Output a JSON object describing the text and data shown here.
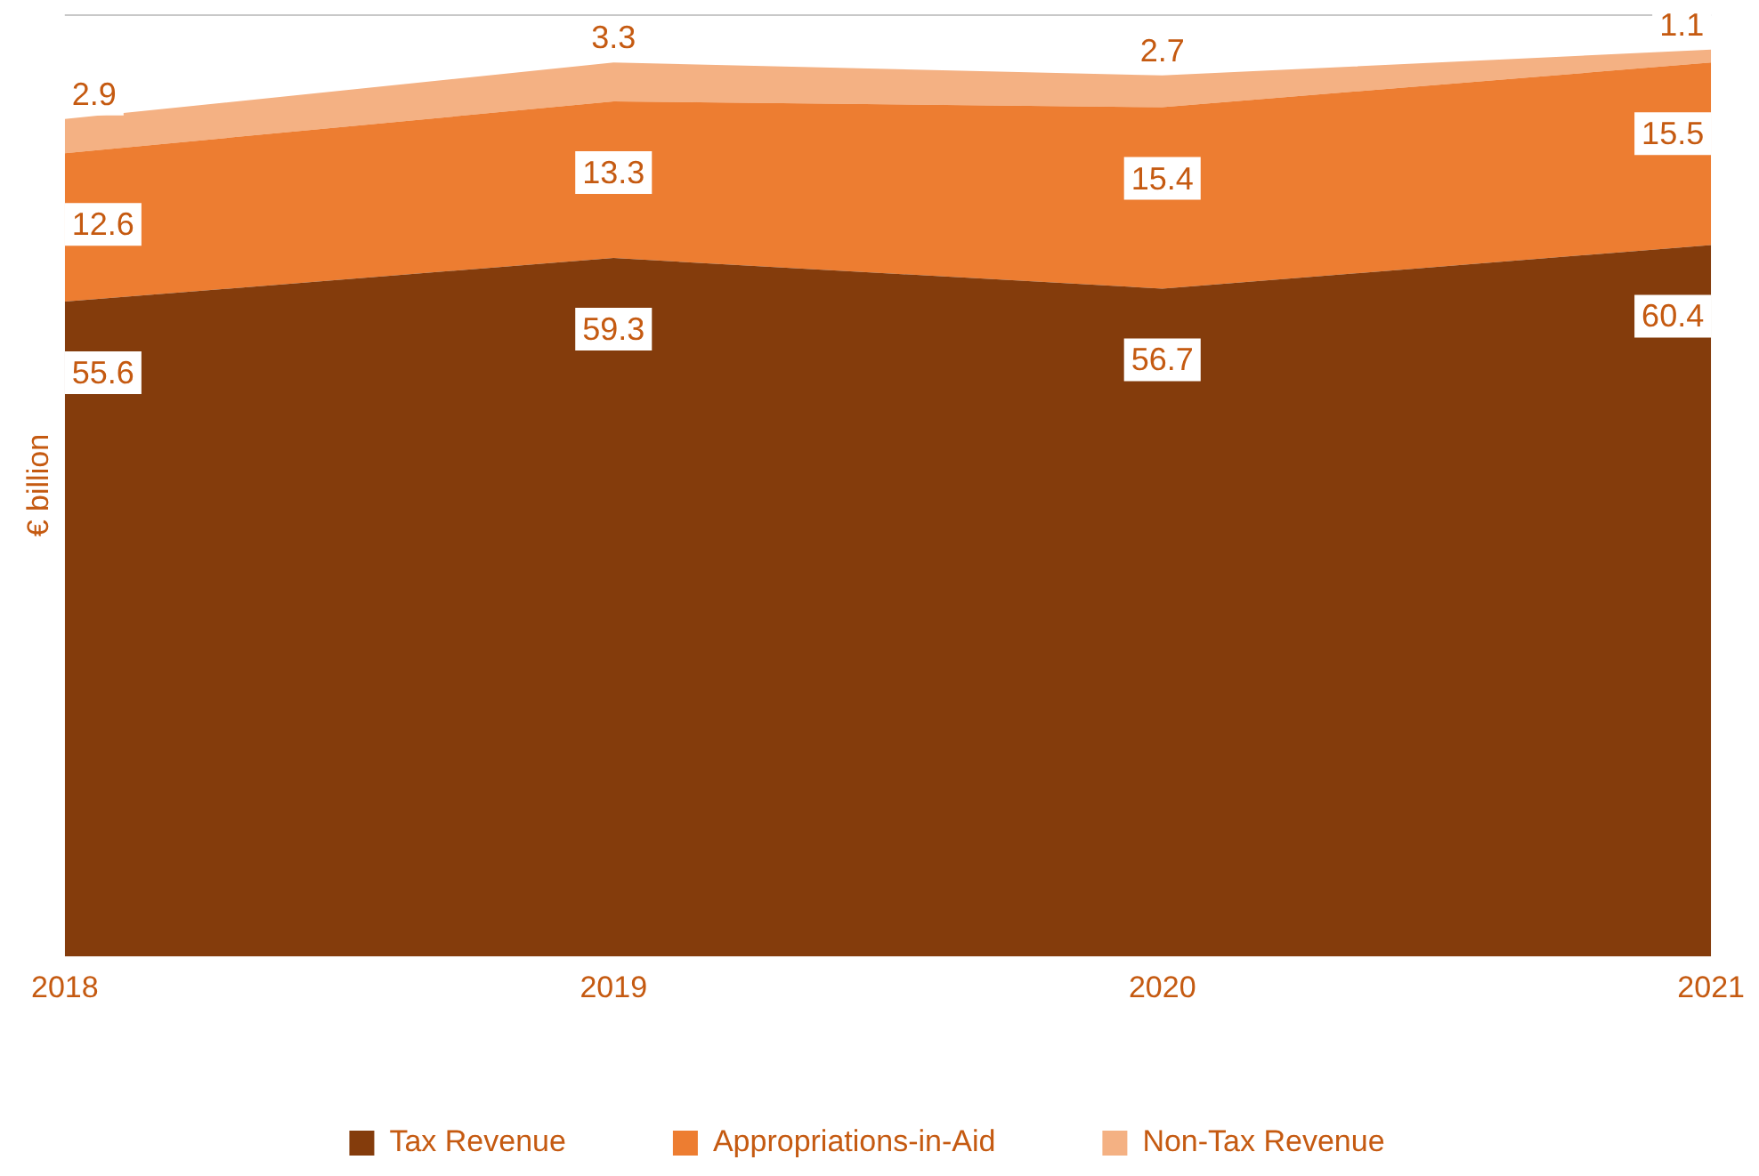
{
  "chart_data": {
    "type": "area",
    "stacked": true,
    "ylabel": "€ billion",
    "categories": [
      "2018",
      "2019",
      "2020",
      "2021"
    ],
    "series": [
      {
        "name": "Tax Revenue",
        "color": "#843c0c",
        "values": [
          55.6,
          59.3,
          56.7,
          60.4
        ]
      },
      {
        "name": "Appropriations-in-Aid",
        "color": "#ed7d31",
        "values": [
          12.6,
          13.3,
          15.4,
          15.5
        ]
      },
      {
        "name": "Non-Tax Revenue",
        "color": "#f4b183",
        "values": [
          2.9,
          3.3,
          2.7,
          1.1
        ]
      }
    ],
    "ylim": [
      0,
      80
    ],
    "tick_labels": "x",
    "legend": "bottom",
    "data_labels": true
  }
}
